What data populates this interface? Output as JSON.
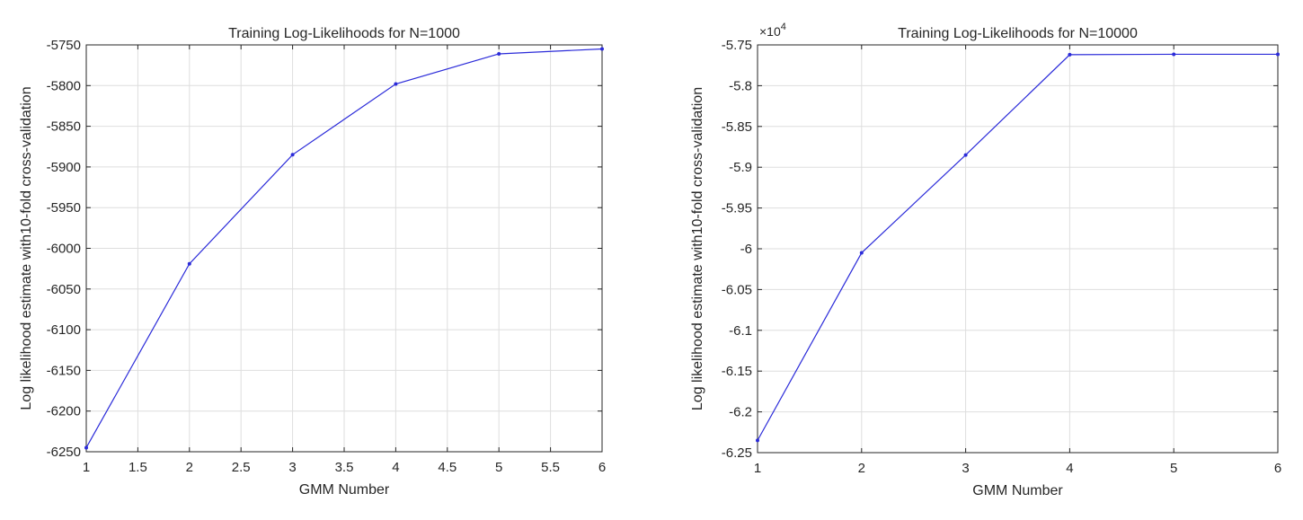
{
  "chart_data": [
    {
      "type": "line",
      "title": "Training Log-Likelihoods for N=1000",
      "xlabel": "GMM Number",
      "ylabel": "Log likelihood estimate with10-fold cross-validation",
      "xlim": [
        1,
        6
      ],
      "ylim": [
        -6250,
        -5750
      ],
      "xticks": [
        1,
        1.5,
        2,
        2.5,
        3,
        3.5,
        4,
        4.5,
        5,
        5.5,
        6
      ],
      "xtick_labels": [
        "1",
        "1.5",
        "2",
        "2.5",
        "3",
        "3.5",
        "4",
        "4.5",
        "5",
        "5.5",
        "6"
      ],
      "yticks": [
        -6250,
        -6200,
        -6150,
        -6100,
        -6050,
        -6000,
        -5950,
        -5900,
        -5850,
        -5800,
        -5750
      ],
      "ytick_labels": [
        "-6250",
        "-6200",
        "-6150",
        "-6100",
        "-6050",
        "-6000",
        "-5950",
        "-5900",
        "-5850",
        "-5800",
        "-5750"
      ],
      "y_exponent": "",
      "grid": true,
      "series": [
        {
          "color": "#2b2bd9",
          "x": [
            1,
            2,
            3,
            4,
            5,
            6
          ],
          "y": [
            -6245,
            -6019,
            -5885,
            -5798,
            -5761,
            -5755
          ]
        }
      ]
    },
    {
      "type": "line",
      "title": "Training Log-Likelihoods for N=10000",
      "xlabel": "GMM Number",
      "ylabel": "Log likelihood estimate with10-fold cross-validation",
      "xlim": [
        1,
        6
      ],
      "ylim": [
        -6.25,
        -5.75
      ],
      "xticks": [
        1,
        2,
        3,
        4,
        5,
        6
      ],
      "xtick_labels": [
        "1",
        "2",
        "3",
        "4",
        "5",
        "6"
      ],
      "yticks": [
        -6.25,
        -6.2,
        -6.15,
        -6.1,
        -6.05,
        -6,
        -5.95,
        -5.9,
        -5.85,
        -5.8,
        -5.75
      ],
      "ytick_labels": [
        "-6.25",
        "-6.2",
        "-6.15",
        "-6.1",
        "-6.05",
        "-6",
        "-5.95",
        "-5.9",
        "-5.85",
        "-5.8",
        "-5.75"
      ],
      "y_exponent": "4",
      "grid": true,
      "series": [
        {
          "color": "#2b2bd9",
          "x": [
            1,
            2,
            3,
            4,
            5,
            6
          ],
          "y": [
            -6.235,
            -6.005,
            -5.885,
            -5.762,
            -5.7615,
            -5.7615
          ]
        }
      ]
    }
  ]
}
